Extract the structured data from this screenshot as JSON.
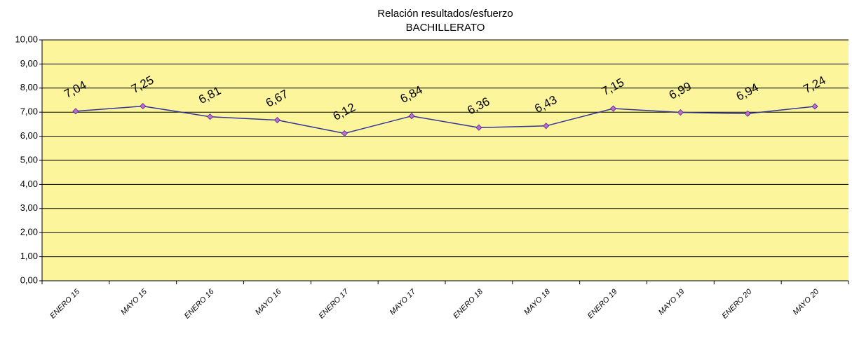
{
  "chart_data": {
    "type": "line",
    "title": "Relación resultados/esfuerzo",
    "subtitle": "BACHILLERATO",
    "categories": [
      "ENERO 15",
      "MAYO 15",
      "ENERO 16",
      "MAYO 16",
      "ENERO 17",
      "MAYO 17",
      "ENERO 18",
      "MAYO 18",
      "ENERO 19",
      "MAYO 19",
      "ENERO 20",
      "MAYO 20"
    ],
    "series": [
      {
        "color": "#333399",
        "marker_color": "#cc66cc",
        "values": [
          7.04,
          7.25,
          6.81,
          6.67,
          6.12,
          6.84,
          6.36,
          6.43,
          7.15,
          6.99,
          6.94,
          7.24
        ],
        "value_labels": [
          "7,04",
          "7,25",
          "6,81",
          "6,67",
          "6,12",
          "6,84",
          "6,36",
          "6,43",
          "7,15",
          "6,99",
          "6,94",
          "7,24"
        ]
      }
    ],
    "ylim": [
      0,
      10
    ],
    "yticks": [
      {
        "value": 0,
        "label": "0,00"
      },
      {
        "value": 1,
        "label": "1,00"
      },
      {
        "value": 2,
        "label": "2,00"
      },
      {
        "value": 3,
        "label": "3,00"
      },
      {
        "value": 4,
        "label": "4,00"
      },
      {
        "value": 5,
        "label": "5,00"
      },
      {
        "value": 6,
        "label": "6,00"
      },
      {
        "value": 7,
        "label": "7,00"
      },
      {
        "value": 8,
        "label": "8,00"
      },
      {
        "value": 9,
        "label": "9,00"
      },
      {
        "value": 10,
        "label": "10,00"
      }
    ],
    "grid": true,
    "background": "#fdf59c"
  }
}
